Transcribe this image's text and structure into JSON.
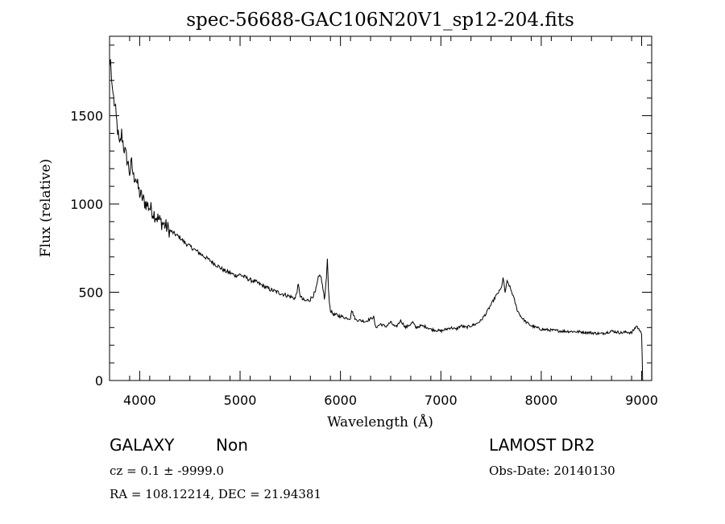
{
  "chart_data": {
    "type": "line",
    "title": "spec-56688-GAC106N20V1_sp12-204.fits",
    "xlabel": "Wavelength (Å)",
    "ylabel": "Flux (relative)",
    "xlim": [
      3700,
      9100
    ],
    "ylim": [
      0,
      1950
    ],
    "xticks": [
      4000,
      5000,
      6000,
      7000,
      8000,
      9000
    ],
    "yticks": [
      0,
      500,
      1000,
      1500
    ],
    "grid": false,
    "series": [
      {
        "x": [
          3700,
          3710,
          3720,
          3730,
          3740,
          3760,
          3780,
          3800,
          3820,
          3840,
          3860,
          3880,
          3900,
          3920,
          3940,
          3960,
          3980,
          4000,
          4050,
          4100,
          4150,
          4200,
          4250,
          4300,
          4350,
          4400,
          4450,
          4500,
          4550,
          4600,
          4650,
          4700,
          4750,
          4800,
          4850,
          4900,
          4950,
          5000,
          5050,
          5100,
          5150,
          5200,
          5250,
          5300,
          5350,
          5400,
          5450,
          5500,
          5550,
          5580,
          5600,
          5620,
          5650,
          5700,
          5750,
          5780,
          5800,
          5820,
          5840,
          5860,
          5870,
          5880,
          5890,
          5900,
          5920,
          5950,
          6000,
          6050,
          6100,
          6110,
          6150,
          6200,
          6250,
          6300,
          6330,
          6350,
          6400,
          6450,
          6500,
          6550,
          6600,
          6650,
          6700,
          6720,
          6750,
          6800,
          6850,
          6900,
          6950,
          7000,
          7050,
          7100,
          7150,
          7200,
          7250,
          7300,
          7350,
          7400,
          7450,
          7500,
          7550,
          7600,
          7620,
          7640,
          7660,
          7680,
          7700,
          7720,
          7740,
          7760,
          7800,
          7850,
          7900,
          7950,
          8000,
          8100,
          8200,
          8300,
          8400,
          8500,
          8600,
          8700,
          8800,
          8850,
          8900,
          8950,
          8980,
          8990,
          9000,
          9010
        ],
        "y": [
          1780,
          1820,
          1700,
          1650,
          1600,
          1520,
          1420,
          1320,
          1400,
          1330,
          1280,
          1240,
          1180,
          1230,
          1150,
          1160,
          1100,
          1060,
          1010,
          980,
          940,
          905,
          880,
          850,
          830,
          810,
          780,
          760,
          740,
          720,
          700,
          680,
          660,
          640,
          620,
          610,
          595,
          600,
          585,
          570,
          560,
          545,
          530,
          515,
          505,
          495,
          485,
          475,
          465,
          540,
          480,
          460,
          450,
          460,
          500,
          580,
          600,
          540,
          460,
          580,
          690,
          520,
          440,
          400,
          380,
          370,
          365,
          355,
          350,
          400,
          345,
          340,
          335,
          350,
          360,
          300,
          320,
          305,
          330,
          300,
          340,
          300,
          320,
          330,
          300,
          310,
          305,
          290,
          285,
          280,
          290,
          300,
          290,
          310,
          300,
          310,
          320,
          340,
          380,
          430,
          480,
          520,
          580,
          500,
          560,
          540,
          510,
          480,
          440,
          400,
          360,
          330,
          310,
          300,
          290,
          285,
          280,
          278,
          275,
          270,
          265,
          280,
          270,
          275,
          270,
          310,
          280,
          280,
          260,
          0
        ]
      }
    ]
  },
  "info": {
    "class": "GALAXY",
    "subclass": "Non",
    "survey": "LAMOST DR2",
    "redshift": "cz = 0.1 ± -9999.0",
    "obs_date": "Obs-Date: 20140130",
    "coords": "RA = 108.12214, DEC =  21.94381"
  }
}
